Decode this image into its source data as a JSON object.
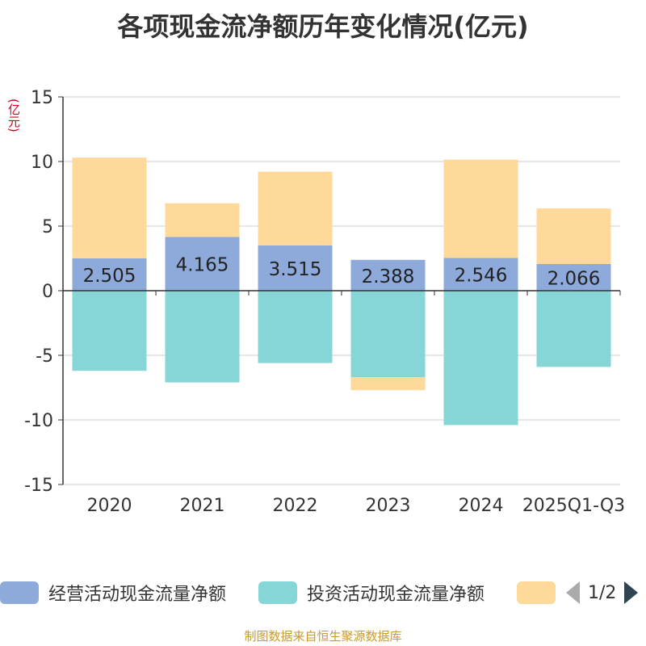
{
  "title": "各项现金流净额历年变化情况(亿元)",
  "y_unit": "(亿元)",
  "source": "制图数据来自恒生聚源数据库",
  "legend": {
    "items": [
      {
        "label": "经营活动现金流量净额",
        "color": "#8eaadb"
      },
      {
        "label": "投资活动现金流量净额",
        "color": "#86d6d8"
      },
      {
        "label": "",
        "color": "#ffd99a"
      }
    ],
    "page": "1/2"
  },
  "chart_data": {
    "type": "bar",
    "stacked": true,
    "categories": [
      "2020",
      "2021",
      "2022",
      "2023",
      "2024",
      "2025Q1-Q3"
    ],
    "ylim": [
      -15,
      15
    ],
    "yticks": [
      15,
      10,
      5,
      0,
      -5,
      -10,
      -15
    ],
    "grid": true,
    "legend_position": "bottom",
    "series": [
      {
        "name": "经营活动现金流量净额",
        "color": "#8eaadb",
        "values": [
          2.505,
          4.165,
          3.515,
          2.388,
          2.546,
          2.066
        ],
        "show_labels": true
      },
      {
        "name": "投资活动现金流量净额",
        "color": "#86d6d8",
        "values": [
          -6.2,
          -7.1,
          -5.6,
          -6.7,
          -10.4,
          -5.9
        ],
        "show_labels": false
      },
      {
        "name": "",
        "color": "#ffd99a",
        "values": [
          7.8,
          2.6,
          5.7,
          -1.0,
          7.6,
          4.3
        ],
        "show_labels": false
      }
    ]
  }
}
